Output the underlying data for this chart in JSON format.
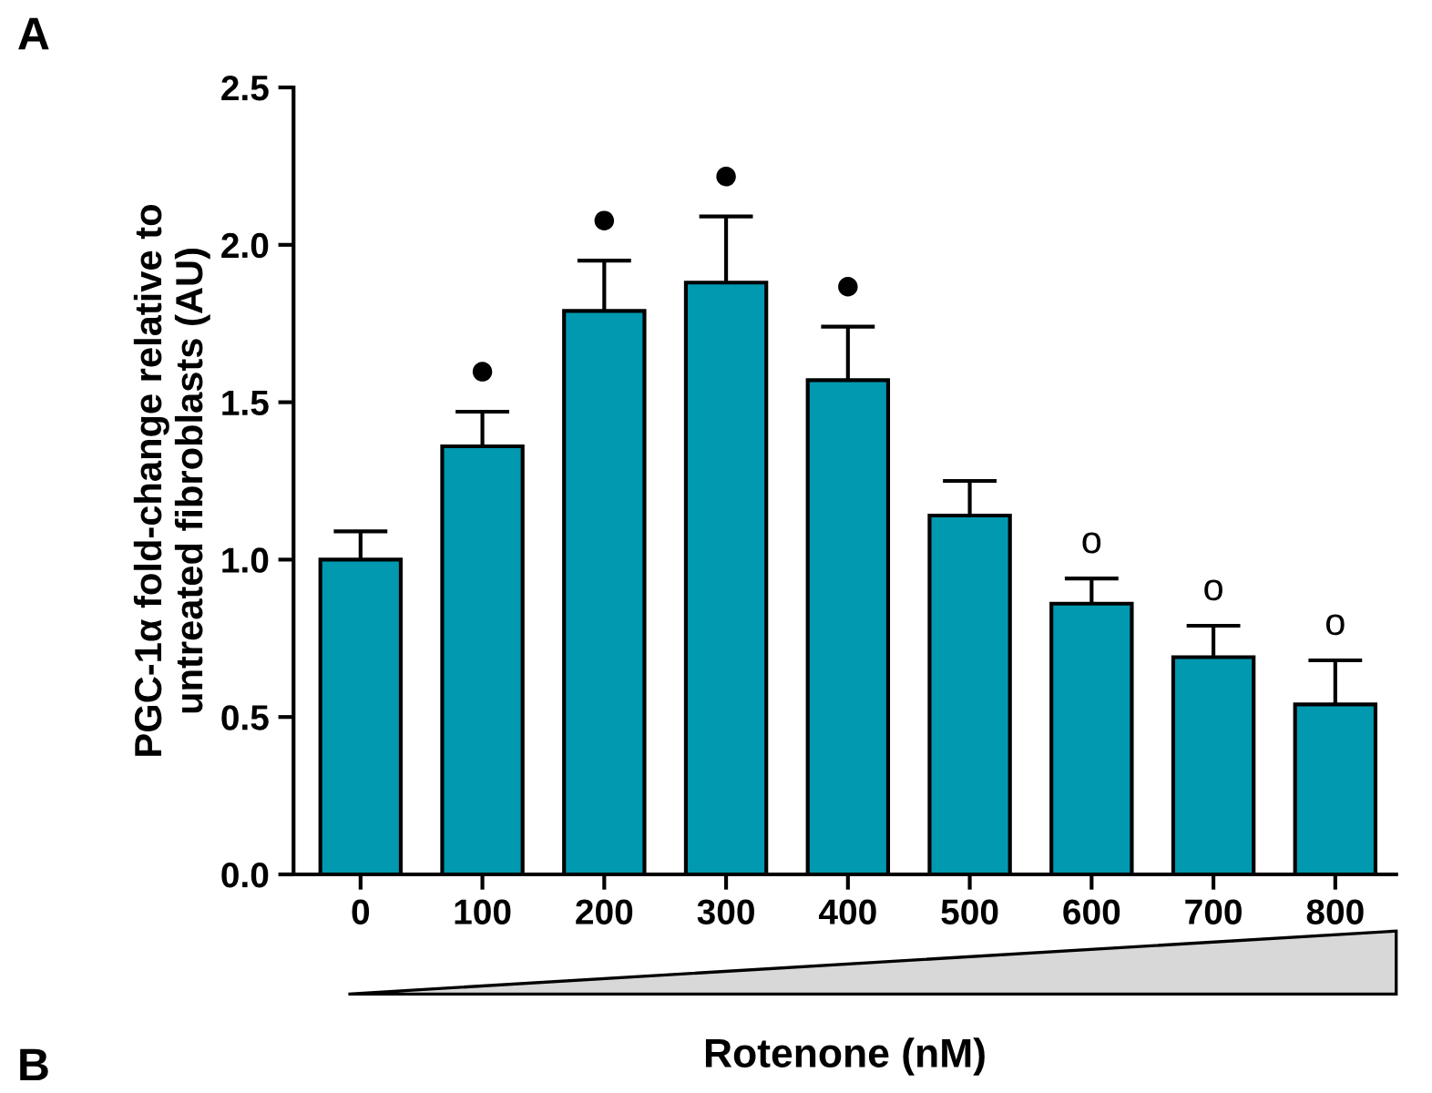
{
  "chart_data": {
    "type": "bar",
    "xlabel": "Rotenone (nM)",
    "ylabel": "PGC-1α fold-change relative to\nuntreated fibroblasts (AU)",
    "categories": [
      "0",
      "100",
      "200",
      "300",
      "400",
      "500",
      "600",
      "700",
      "800"
    ],
    "values": [
      1.0,
      1.36,
      1.79,
      1.88,
      1.57,
      1.14,
      0.86,
      0.69,
      0.54
    ],
    "errors": [
      [
        1.0,
        1.09
      ],
      [
        1.36,
        1.47
      ],
      [
        1.79,
        1.95
      ],
      [
        1.88,
        2.09
      ],
      [
        1.57,
        1.74
      ],
      [
        1.14,
        1.25
      ],
      [
        0.86,
        0.94
      ],
      [
        0.69,
        0.79
      ],
      [
        0.54,
        0.68
      ]
    ],
    "color": "#0099b0",
    "ylim": [
      0,
      2.5
    ],
    "yticks": [
      {
        "value": 0,
        "label": "0.0"
      },
      {
        "value": 0.5,
        "label": "0.5"
      },
      {
        "value": 1,
        "label": "1.0"
      },
      {
        "value": 1.5,
        "label": "1.5"
      },
      {
        "value": 2,
        "label": "2.0"
      },
      {
        "value": 2.5,
        "label": "2.5"
      }
    ],
    "grid": false,
    "legend": false,
    "annotations": [
      "A",
      "B",
      {
        "text": "●",
        "x": "100",
        "y": 1.36
      },
      {
        "text": "●",
        "x": "200",
        "y": 1.79
      },
      {
        "text": "●",
        "x": "300",
        "y": 1.88
      },
      {
        "text": "●",
        "x": "400",
        "y": 1.57
      },
      {
        "text": "o",
        "x": "600",
        "y": 0.86
      },
      {
        "text": "o",
        "x": "700",
        "y": 0.69
      },
      {
        "text": "o",
        "x": "800",
        "y": 0.54
      }
    ]
  }
}
